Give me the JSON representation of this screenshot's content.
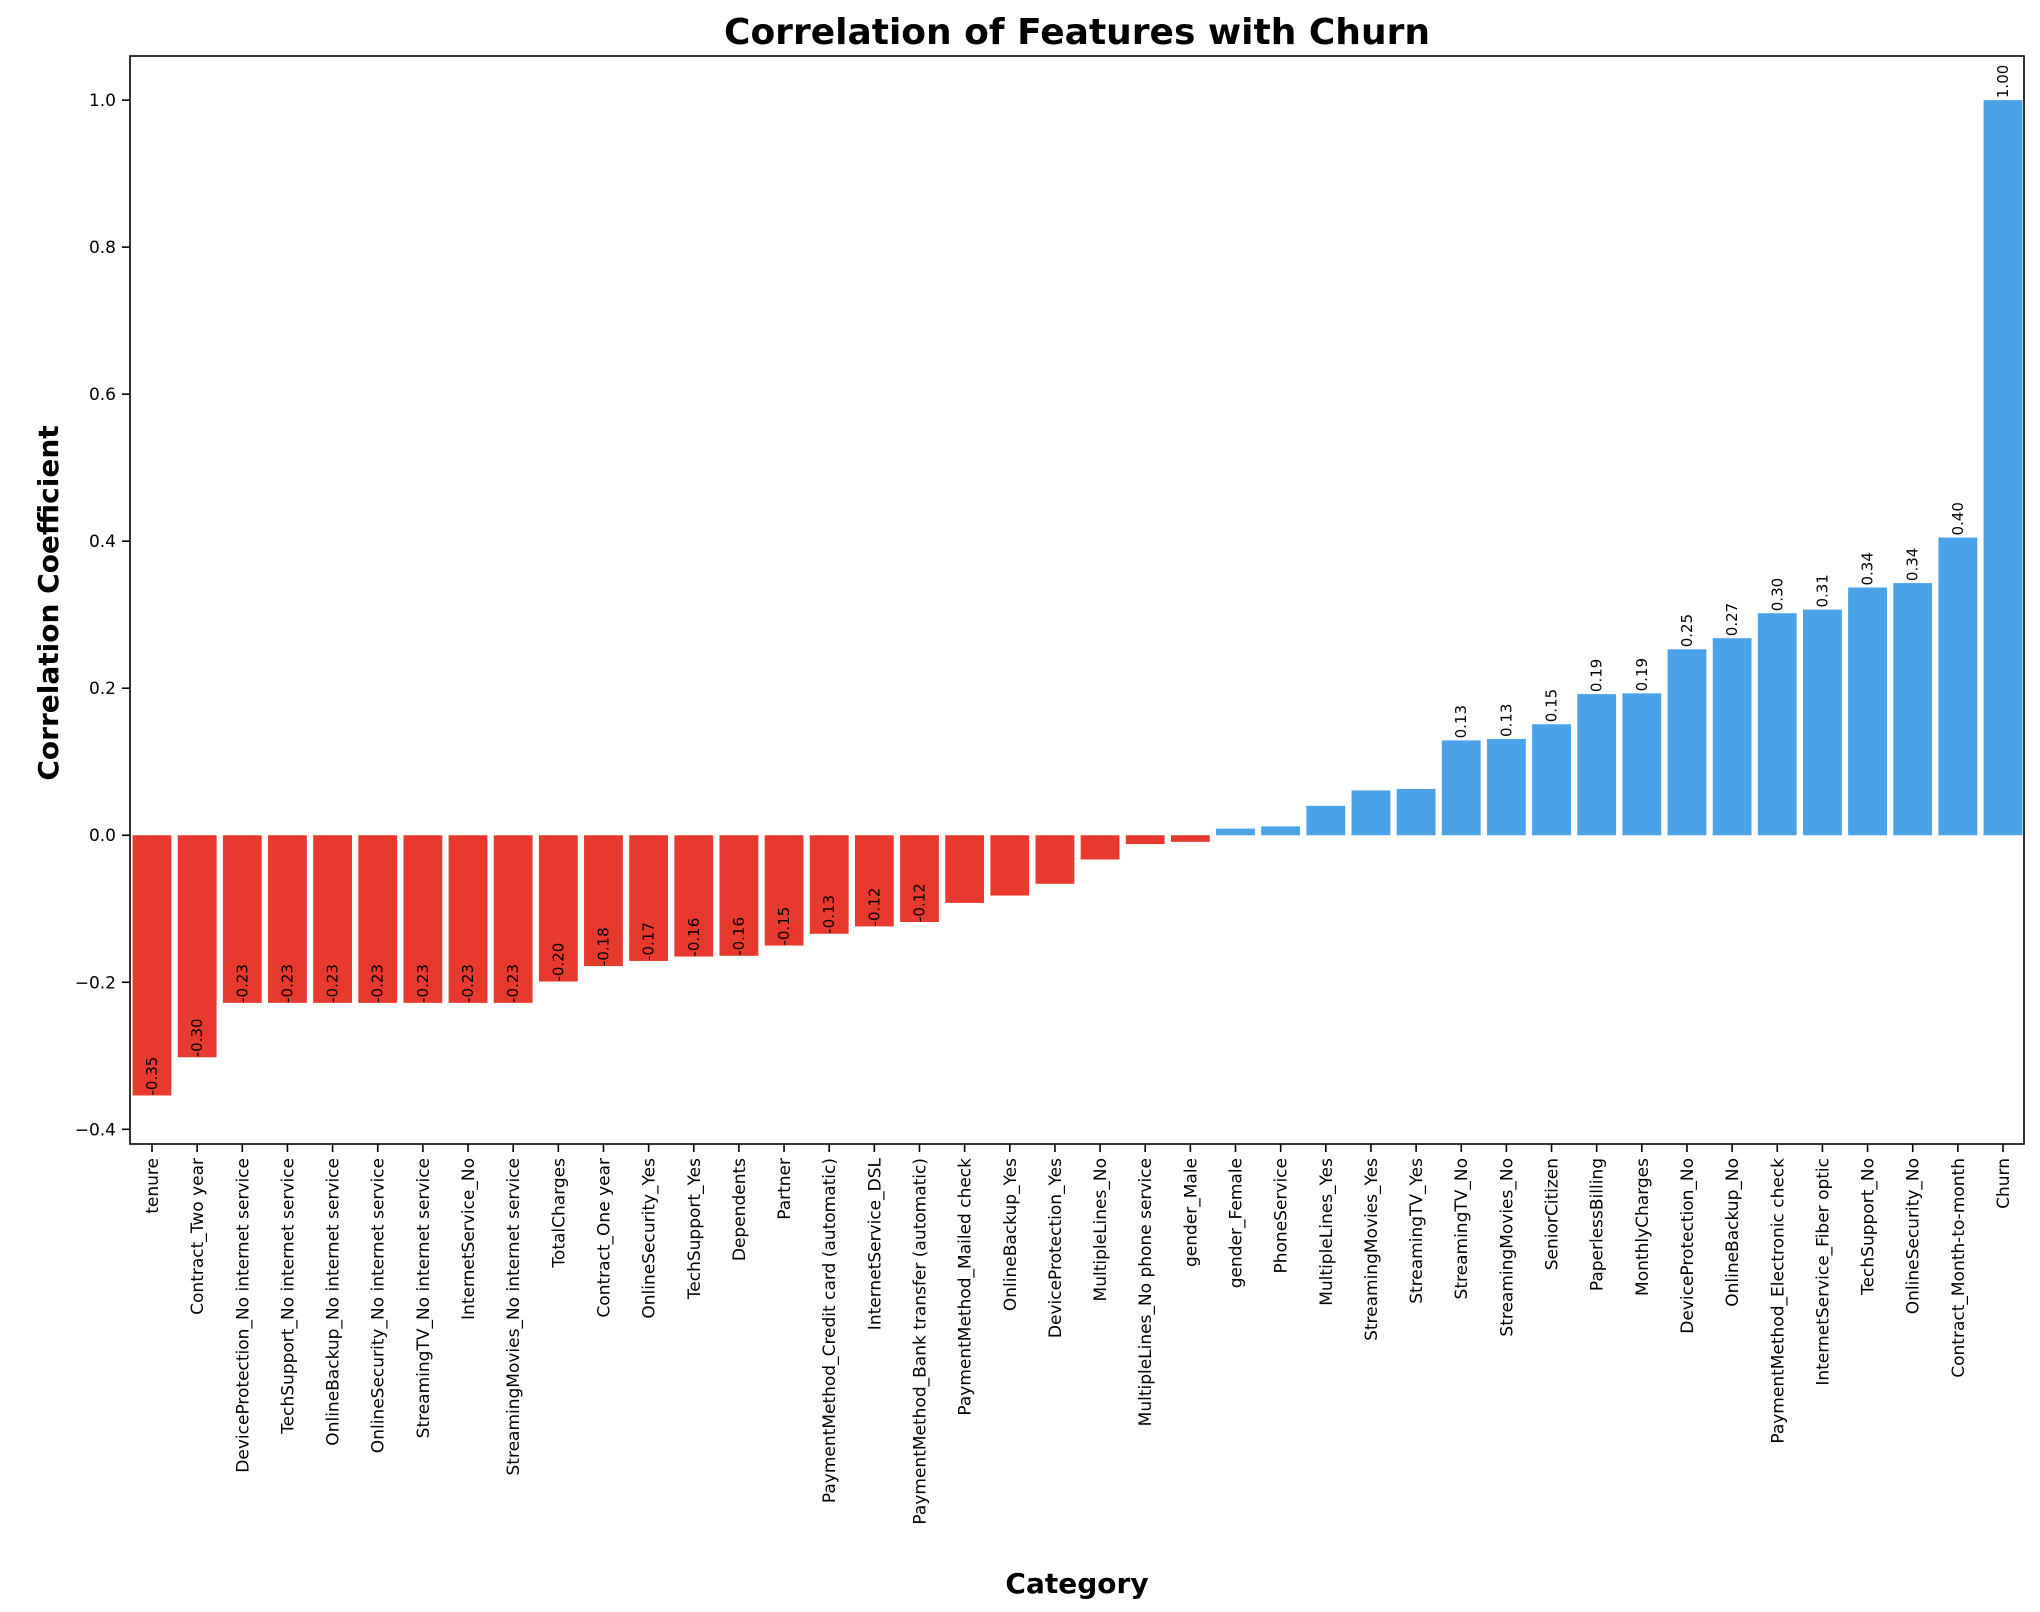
{
  "chart_data": {
    "type": "bar",
    "title": "Correlation of Features with Churn",
    "xlabel": "Category",
    "ylabel": "Correlation Coefficient",
    "ylim": [
      -0.42,
      1.06
    ],
    "yticks": [
      "1.0",
      "0.8",
      "0.6",
      "0.4",
      "0.2",
      "0.0",
      "−0.2",
      "−0.4"
    ],
    "ytick_values": [
      1.0,
      0.8,
      0.6,
      0.4,
      0.2,
      0.0,
      -0.2,
      -0.4
    ],
    "colors": {
      "negative": "#E8392F",
      "positive": "#4AA2E8"
    },
    "grid": false,
    "bars": [
      {
        "category": "tenure",
        "value": -0.354,
        "label": "-0.35"
      },
      {
        "category": "Contract_Two year",
        "value": -0.302,
        "label": "-0.30"
      },
      {
        "category": "DeviceProtection_No internet service",
        "value": -0.228,
        "label": "-0.23"
      },
      {
        "category": "TechSupport_No internet service",
        "value": -0.228,
        "label": "-0.23"
      },
      {
        "category": "OnlineBackup_No internet service",
        "value": -0.228,
        "label": "-0.23"
      },
      {
        "category": "OnlineSecurity_No internet service",
        "value": -0.228,
        "label": "-0.23"
      },
      {
        "category": "StreamingTV_No internet service",
        "value": -0.228,
        "label": "-0.23"
      },
      {
        "category": "InternetService_No",
        "value": -0.228,
        "label": "-0.23"
      },
      {
        "category": "StreamingMovies_No internet service",
        "value": -0.228,
        "label": "-0.23"
      },
      {
        "category": "TotalCharges",
        "value": -0.199,
        "label": "-0.20"
      },
      {
        "category": "Contract_One year",
        "value": -0.178,
        "label": "-0.18"
      },
      {
        "category": "OnlineSecurity_Yes",
        "value": -0.171,
        "label": "-0.17"
      },
      {
        "category": "TechSupport_Yes",
        "value": -0.165,
        "label": "-0.16"
      },
      {
        "category": "Dependents",
        "value": -0.164,
        "label": "-0.16"
      },
      {
        "category": "Partner",
        "value": -0.15,
        "label": "-0.15"
      },
      {
        "category": "PaymentMethod_Credit card (automatic)",
        "value": -0.134,
        "label": "-0.13"
      },
      {
        "category": "InternetService_DSL",
        "value": -0.124,
        "label": "-0.12"
      },
      {
        "category": "PaymentMethod_Bank transfer (automatic)",
        "value": -0.118,
        "label": "-0.12"
      },
      {
        "category": "PaymentMethod_Mailed check",
        "value": -0.092,
        "label": ""
      },
      {
        "category": "OnlineBackup_Yes",
        "value": -0.082,
        "label": ""
      },
      {
        "category": "DeviceProtection_Yes",
        "value": -0.066,
        "label": ""
      },
      {
        "category": "MultipleLines_No",
        "value": -0.033,
        "label": ""
      },
      {
        "category": "MultipleLines_No phone service",
        "value": -0.012,
        "label": ""
      },
      {
        "category": "gender_Male",
        "value": -0.009,
        "label": ""
      },
      {
        "category": "gender_Female",
        "value": 0.009,
        "label": ""
      },
      {
        "category": "PhoneService",
        "value": 0.012,
        "label": ""
      },
      {
        "category": "MultipleLines_Yes",
        "value": 0.04,
        "label": ""
      },
      {
        "category": "StreamingMovies_Yes",
        "value": 0.061,
        "label": ""
      },
      {
        "category": "StreamingTV_Yes",
        "value": 0.063,
        "label": ""
      },
      {
        "category": "StreamingTV_No",
        "value": 0.129,
        "label": "0.13"
      },
      {
        "category": "StreamingMovies_No",
        "value": 0.131,
        "label": "0.13"
      },
      {
        "category": "SeniorCitizen",
        "value": 0.151,
        "label": "0.15"
      },
      {
        "category": "PaperlessBilling",
        "value": 0.192,
        "label": "0.19"
      },
      {
        "category": "MonthlyCharges",
        "value": 0.193,
        "label": "0.19"
      },
      {
        "category": "DeviceProtection_No",
        "value": 0.253,
        "label": "0.25"
      },
      {
        "category": "OnlineBackup_No",
        "value": 0.268,
        "label": "0.27"
      },
      {
        "category": "PaymentMethod_Electronic check",
        "value": 0.302,
        "label": "0.30"
      },
      {
        "category": "InternetService_Fiber optic",
        "value": 0.307,
        "label": "0.31"
      },
      {
        "category": "TechSupport_No",
        "value": 0.337,
        "label": "0.34"
      },
      {
        "category": "OnlineSecurity_No",
        "value": 0.343,
        "label": "0.34"
      },
      {
        "category": "Contract_Month-to-month",
        "value": 0.405,
        "label": "0.40"
      },
      {
        "category": "Churn",
        "value": 1.0,
        "label": "1.00"
      }
    ]
  }
}
